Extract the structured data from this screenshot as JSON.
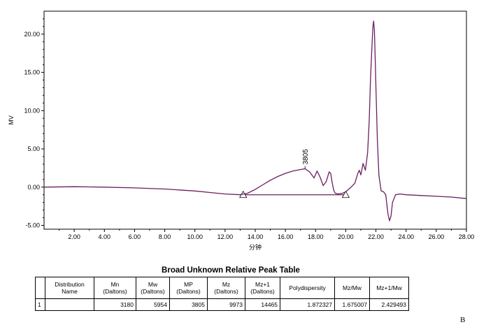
{
  "chart_data": {
    "type": "line",
    "xlabel": "分钟",
    "ylabel": "MV",
    "xlim": [
      0,
      28
    ],
    "ylim": [
      -5.5,
      23
    ],
    "x_ticks": [
      "2.00",
      "4.00",
      "6.00",
      "8.00",
      "10.00",
      "12.00",
      "14.00",
      "16.00",
      "18.00",
      "20.00",
      "22.00",
      "24.00",
      "26.00",
      "28.00"
    ],
    "y_ticks": [
      "-5.00",
      "0.00",
      "5.00",
      "10.00",
      "15.00",
      "20.00"
    ],
    "grid": false,
    "peak_label": "3805",
    "peak_label_x": 17.3,
    "line_color": "#6b1f5e",
    "series": [
      {
        "x": [
          0,
          2,
          4,
          6,
          8,
          10,
          11,
          12,
          13,
          13.5,
          14,
          14.5,
          15,
          15.5,
          16,
          16.5,
          17,
          17.3,
          17.6,
          17.9,
          18.1,
          18.3,
          18.5,
          18.7,
          18.9,
          19.0,
          19.1,
          19.2,
          19.3,
          19.5,
          19.8,
          20.0,
          20.3,
          20.6,
          20.8,
          20.9,
          21.0,
          21.15,
          21.3,
          21.45,
          21.55,
          21.65,
          21.75,
          21.8,
          21.85,
          21.9,
          21.95,
          22.0,
          22.1,
          22.2,
          22.35,
          22.5,
          22.65,
          22.8,
          22.9,
          23.0,
          23.1,
          23.3,
          23.6,
          24.0,
          25.0,
          26.0,
          27.0,
          28.0
        ],
        "y": [
          0.0,
          0.05,
          0.0,
          -0.1,
          -0.25,
          -0.5,
          -0.7,
          -0.9,
          -1.0,
          -0.8,
          -0.3,
          0.3,
          0.9,
          1.4,
          1.8,
          2.1,
          2.3,
          2.4,
          2.0,
          1.2,
          2.1,
          1.3,
          0.2,
          0.7,
          2.0,
          1.8,
          0.6,
          -0.4,
          -0.8,
          -0.9,
          -0.8,
          -0.6,
          -0.1,
          0.5,
          1.8,
          2.2,
          1.6,
          3.1,
          2.2,
          4.5,
          8.5,
          14.5,
          19.0,
          21.0,
          21.7,
          20.5,
          17.0,
          13.0,
          6.0,
          1.5,
          -0.5,
          -0.6,
          -1.0,
          -3.5,
          -4.4,
          -3.8,
          -2.0,
          -1.0,
          -0.9,
          -1.0,
          -1.1,
          -1.2,
          -1.3,
          -1.5
        ]
      }
    ],
    "baseline": {
      "x": [
        13.2,
        20.0
      ],
      "y": [
        -1.0,
        -1.0
      ]
    }
  },
  "table": {
    "title": "Broad Unknown Relative Peak Table",
    "headers": [
      [
        "",
        ""
      ],
      [
        "Distribution",
        "Name"
      ],
      [
        "Mn",
        "(Daltons)"
      ],
      [
        "Mw",
        "(Daltons)"
      ],
      [
        "MP",
        "(Daltons)"
      ],
      [
        "Mz",
        "(Daltons)"
      ],
      [
        "Mz+1",
        "(Daltons)"
      ],
      [
        "Polydispersity",
        ""
      ],
      [
        "Mz/Mw",
        ""
      ],
      [
        "Mz+1/Mw",
        ""
      ]
    ],
    "rows": [
      [
        "1",
        "",
        "3180",
        "5954",
        "3805",
        "9973",
        "14465",
        "1.872327",
        "1.675007",
        "2.429493"
      ]
    ]
  },
  "corner_letter": "B"
}
